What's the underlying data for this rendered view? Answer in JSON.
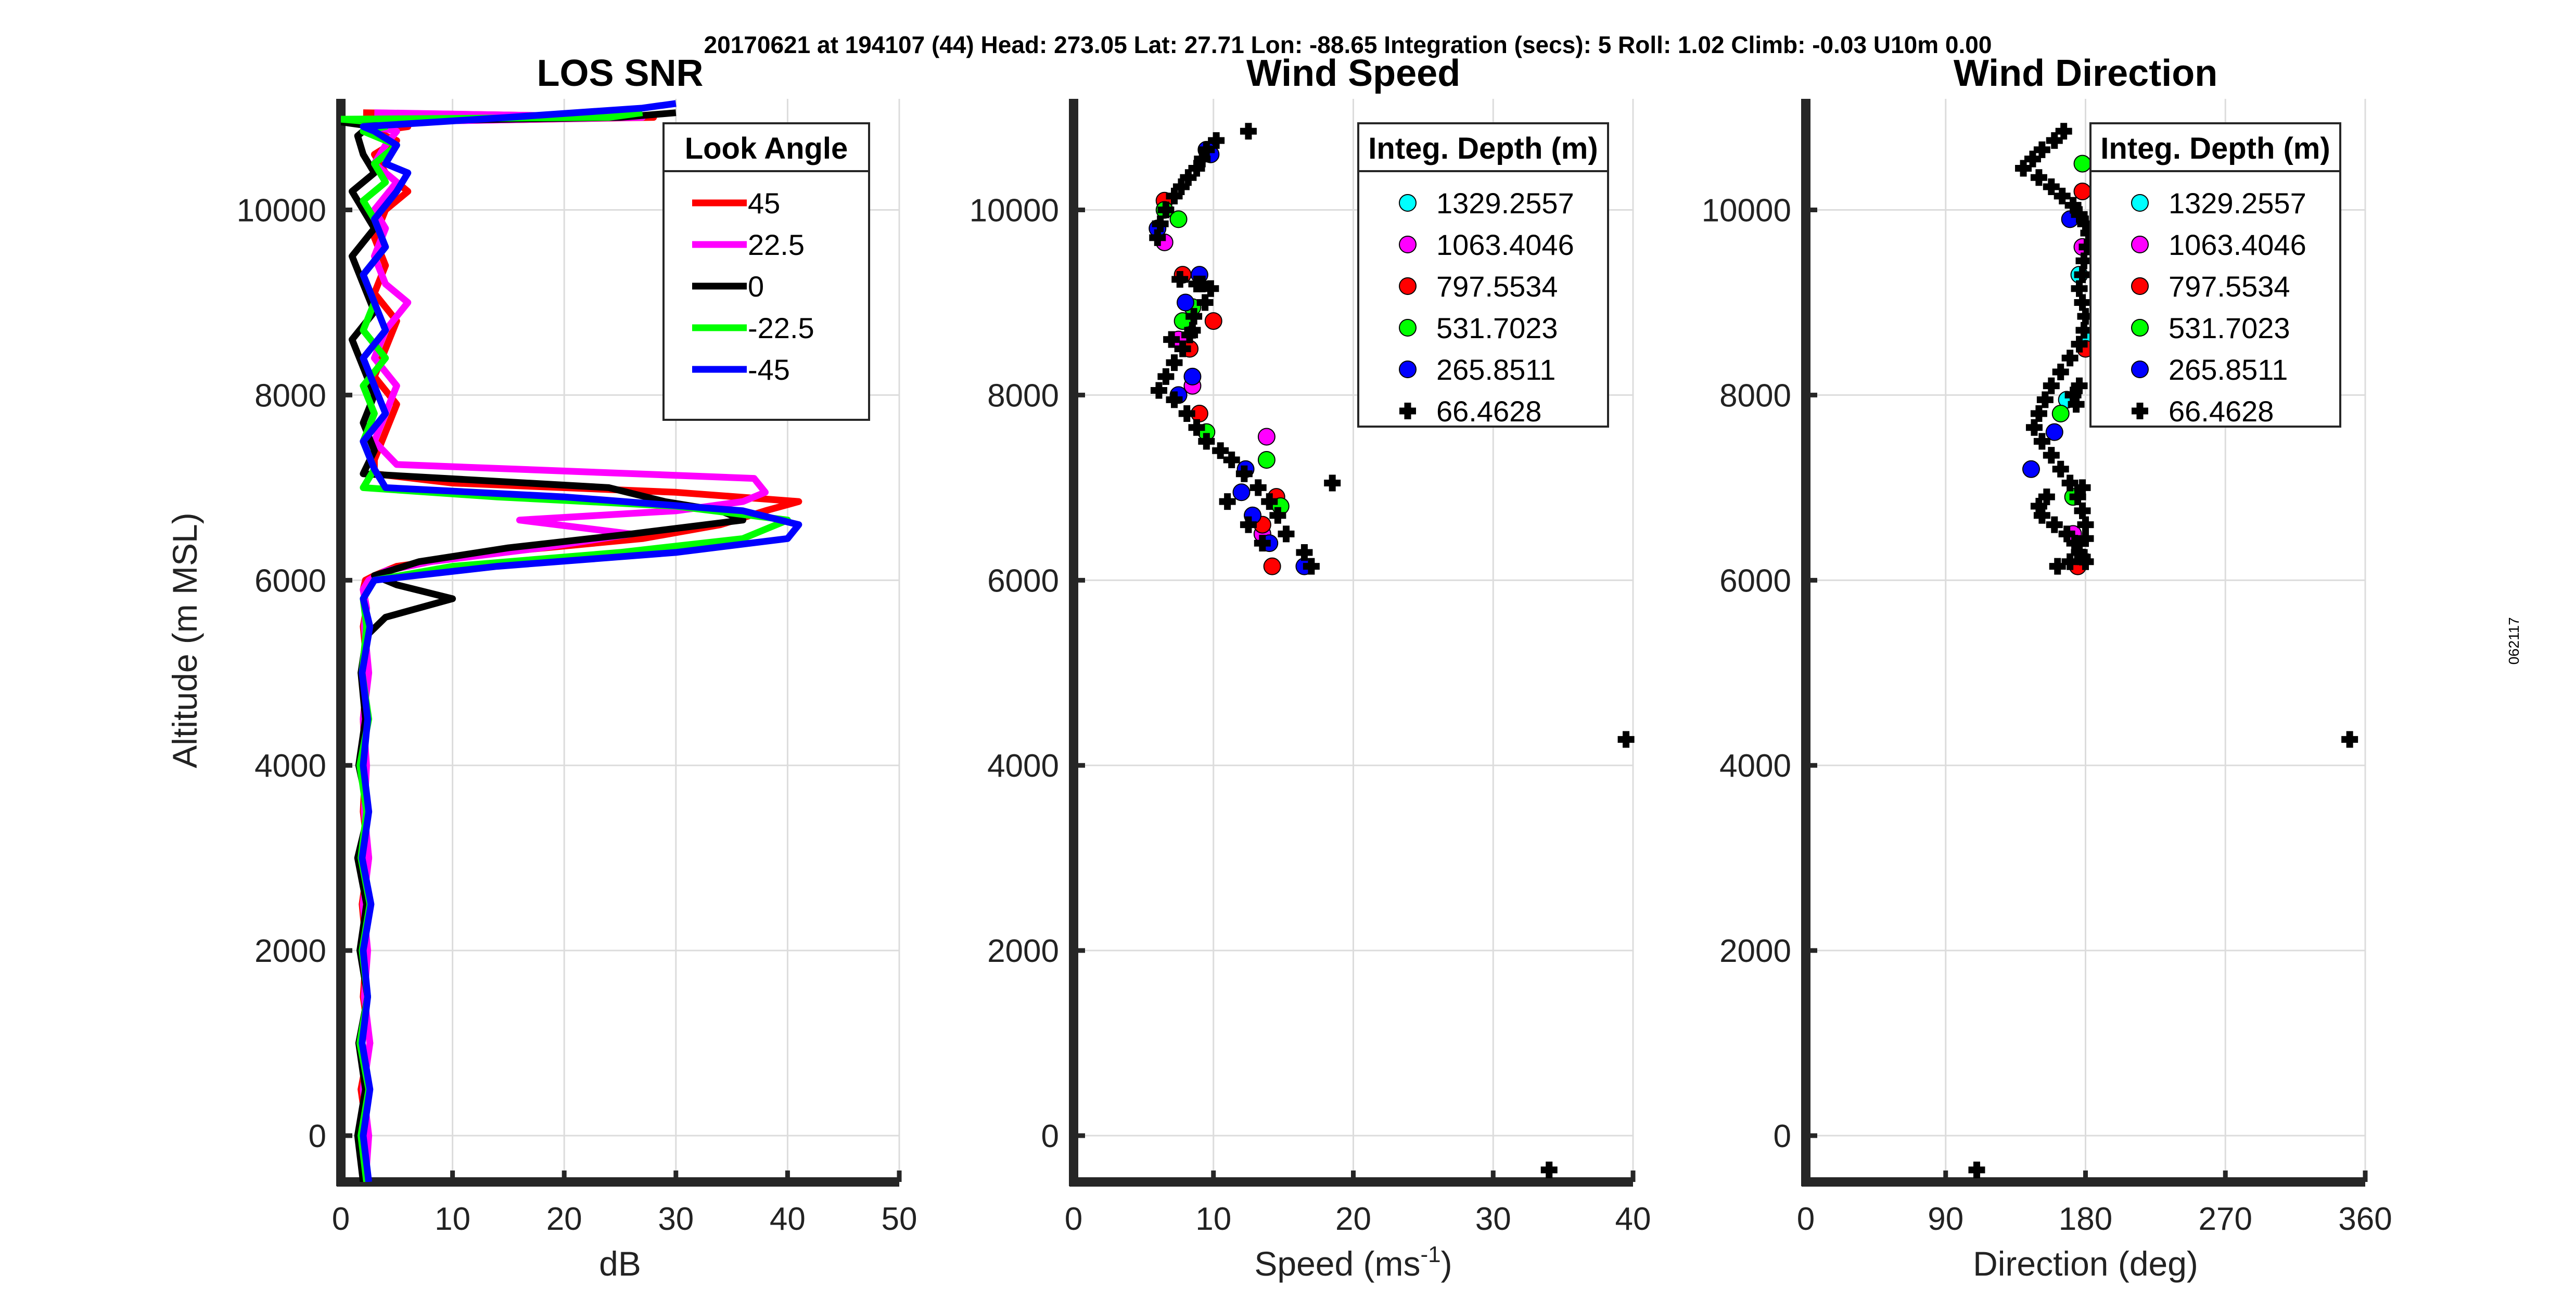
{
  "header": {
    "title": "20170621 at 194107 (44)  Head: 273.05  Lat: 27.71  Lon: -88.65  Integration (secs): 5  Roll: 1.02  Climb: -0.03  U10m 0.00"
  },
  "side_stamp": "062117",
  "colors": {
    "45": "#ff0000",
    "22.5": "#ff00ff",
    "0": "#000000",
    "-22.5": "#00ff00",
    "-45": "#0000ff",
    "1329.2557": "#00ffff",
    "1063.4046": "#ff00ff",
    "797.5534": "#ff0000",
    "531.7023": "#00ff00",
    "265.8511": "#0000ff",
    "66.4628": "#000000"
  },
  "chart_data": [
    {
      "type": "line",
      "title": "LOS SNR",
      "xlabel": "dB",
      "ylabel": "Altitude (m MSL)",
      "xlim": [
        0,
        50
      ],
      "ylim": [
        -500,
        11200
      ],
      "xticks": [
        "0",
        "10",
        "20",
        "30",
        "40",
        "50"
      ],
      "yticks": [
        "0",
        "2000",
        "4000",
        "6000",
        "8000",
        "10000"
      ],
      "grid": true,
      "legend": {
        "title": "Look Angle",
        "placement": "top-right",
        "entries": [
          "45",
          "22.5",
          "0",
          "-22.5",
          "-45"
        ]
      },
      "series": [
        {
          "name": "45",
          "x": [
            2,
            2.4,
            1.8,
            2.6,
            2,
            2.3,
            1.9,
            2.5,
            2,
            2.2,
            2,
            2.4,
            2,
            2.3,
            2,
            2.2,
            3,
            5,
            14,
            27,
            34,
            38,
            41,
            30,
            10,
            3,
            3,
            4,
            5,
            3,
            4,
            5,
            3,
            4,
            3,
            4,
            6,
            4,
            3,
            5,
            3,
            6,
            3,
            28,
            2
          ],
          "y": [
            -500,
            0,
            500,
            1000,
            1500,
            2000,
            2500,
            3000,
            3500,
            4000,
            4500,
            5000,
            5500,
            5700,
            5900,
            6000,
            6050,
            6150,
            6300,
            6450,
            6600,
            6750,
            6850,
            6950,
            7050,
            7150,
            7300,
            7600,
            7900,
            8200,
            8500,
            8800,
            9100,
            9400,
            9700,
            10000,
            10200,
            10400,
            10600,
            10750,
            10850,
            10900,
            10950,
            11000,
            11050
          ]
        },
        {
          "name": "22.5",
          "x": [
            2.2,
            2.5,
            2,
            2.6,
            2.1,
            2.4,
            2,
            2.5,
            2.1,
            2.3,
            2,
            2.5,
            2.1,
            2.3,
            2,
            2.5,
            4,
            8,
            18,
            26,
            16,
            30,
            36,
            38,
            37,
            5,
            3,
            4,
            5,
            3,
            4,
            6,
            4,
            3,
            4,
            3,
            5,
            3,
            4,
            5,
            3,
            4,
            27,
            3
          ],
          "y": [
            -500,
            0,
            500,
            1000,
            1500,
            2000,
            2500,
            3000,
            3500,
            4000,
            4500,
            5000,
            5500,
            5700,
            5900,
            6000,
            6100,
            6200,
            6350,
            6500,
            6650,
            6750,
            6850,
            6950,
            7100,
            7250,
            7500,
            7800,
            8100,
            8400,
            8700,
            9000,
            9200,
            9500,
            9800,
            10000,
            10300,
            10500,
            10700,
            10850,
            10900,
            10950,
            11000,
            11050
          ]
        },
        {
          "name": "0",
          "x": [
            2,
            1.5,
            2.2,
            1.6,
            2.4,
            1.7,
            2.3,
            1.5,
            2.5,
            1.6,
            2.2,
            1.8,
            2.3,
            4,
            10,
            5,
            3,
            7,
            15,
            26,
            36,
            34,
            29,
            24,
            2,
            3,
            2,
            3,
            2,
            1,
            3,
            2,
            1,
            3,
            2,
            1,
            3,
            2,
            1.5,
            2,
            3,
            0,
            25,
            30
          ],
          "y": [
            -500,
            0,
            500,
            1000,
            1500,
            2000,
            2500,
            3000,
            3500,
            4000,
            4500,
            5000,
            5400,
            5600,
            5800,
            5950,
            6050,
            6200,
            6350,
            6500,
            6650,
            6750,
            6850,
            7000,
            7150,
            7400,
            7700,
            8000,
            8300,
            8600,
            8900,
            9200,
            9500,
            9800,
            10000,
            10200,
            10400,
            10600,
            10800,
            10850,
            10900,
            10950,
            11000,
            11050
          ]
        },
        {
          "name": "-22.5",
          "x": [
            2.3,
            1.8,
            2.5,
            1.7,
            2.4,
            1.9,
            2.6,
            1.8,
            2.3,
            1.7,
            2.5,
            1.9,
            2.3,
            2,
            3,
            10,
            25,
            36,
            40,
            30,
            14,
            2,
            3,
            2,
            3,
            2,
            4,
            2,
            3,
            2,
            4,
            3,
            2,
            4,
            3,
            5,
            3,
            2,
            4,
            3,
            0,
            24,
            27
          ],
          "y": [
            -500,
            0,
            500,
            1000,
            1500,
            2000,
            2500,
            3000,
            3500,
            4000,
            4500,
            5000,
            5500,
            5800,
            6000,
            6150,
            6300,
            6450,
            6650,
            6800,
            6900,
            7000,
            7200,
            7500,
            7800,
            8100,
            8400,
            8700,
            9000,
            9300,
            9600,
            9900,
            10100,
            10300,
            10500,
            10700,
            10800,
            10850,
            10900,
            10950,
            10980,
            11000,
            11050
          ]
        },
        {
          "name": "-45",
          "x": [
            2.5,
            2,
            2.6,
            1.9,
            2.4,
            2,
            2.7,
            1.9,
            2.5,
            2,
            2.4,
            1.9,
            2.6,
            2,
            3,
            14,
            30,
            40,
            41,
            36,
            20,
            4,
            3,
            2,
            4,
            3,
            2,
            4,
            3,
            2,
            4,
            3,
            5,
            6,
            4,
            5,
            3,
            2,
            15,
            27,
            30
          ],
          "y": [
            -500,
            0,
            500,
            1000,
            1500,
            2000,
            2500,
            3000,
            3500,
            4000,
            4500,
            5000,
            5500,
            5800,
            6000,
            6150,
            6300,
            6450,
            6600,
            6750,
            6900,
            7000,
            7200,
            7500,
            7800,
            8100,
            8400,
            8700,
            9000,
            9300,
            9600,
            9900,
            10200,
            10400,
            10500,
            10700,
            10850,
            10900,
            11000,
            11100,
            11150
          ]
        }
      ]
    },
    {
      "type": "scatter",
      "title": "Wind Speed",
      "xlabel": "Speed (ms",
      "xlabel_sup": "-1",
      "xlabel_end": ")",
      "xlim": [
        0,
        40
      ],
      "ylim": [
        -500,
        11200
      ],
      "xticks": [
        "0",
        "10",
        "20",
        "30",
        "40"
      ],
      "yticks": [
        "0",
        "2000",
        "4000",
        "6000",
        "8000",
        "10000"
      ],
      "grid": true,
      "legend": {
        "title": "Integ. Depth (m)",
        "placement": "top-right",
        "entries": [
          "1329.2557",
          "1063.4046",
          "797.5534",
          "531.7023",
          "265.8511",
          "66.4628"
        ]
      },
      "series": [
        {
          "name": "1063.4046",
          "marker": "circle",
          "x": [
            13.8,
            6.5,
            7.5,
            8.5,
            13.5
          ],
          "y": [
            7550,
            9650,
            8600,
            8100,
            6500
          ]
        },
        {
          "name": "797.5534",
          "marker": "circle",
          "x": [
            6.5,
            7.8,
            8.3,
            14.5,
            14.2,
            13.5,
            9,
            10
          ],
          "y": [
            10100,
            9300,
            8500,
            6900,
            6150,
            6600,
            7800,
            8800
          ]
        },
        {
          "name": "531.7023",
          "marker": "circle",
          "x": [
            13.8,
            7.5,
            8.5,
            7.8,
            14.8,
            9.5,
            6.5
          ],
          "y": [
            7300,
            9900,
            8950,
            8800,
            6800,
            7600,
            10000
          ]
        },
        {
          "name": "265.8511",
          "marker": "circle",
          "x": [
            6,
            9.5,
            8.5,
            12.3,
            12.8,
            12,
            16.5,
            9,
            7.5,
            8,
            14,
            9.8
          ],
          "y": [
            9800,
            10650,
            8200,
            7200,
            6700,
            6950,
            6150,
            9300,
            8000,
            9000,
            6400,
            10600
          ]
        },
        {
          "name": "66.4628",
          "marker": "plus",
          "x": [
            12.5,
            10.2,
            9.5,
            9.2,
            8.8,
            8.2,
            7.7,
            7.2,
            6.6,
            6.2,
            6.0,
            7.6,
            8.8,
            9.8,
            9.4,
            8.6,
            8.3,
            7.8,
            7.2,
            6.6,
            6.1,
            7.2,
            8.1,
            8.8,
            9.5,
            10.5,
            11.3,
            12.2,
            13.2,
            14.0,
            14.6,
            15.2,
            16.5,
            17.0,
            18.5,
            39.5,
            34.0,
            13.5,
            12.5,
            11.0,
            9.2,
            8.5,
            7.0
          ],
          "y": [
            10850,
            10750,
            10650,
            10550,
            10450,
            10350,
            10250,
            10150,
            10000,
            9850,
            9700,
            9250,
            9200,
            9150,
            9000,
            8850,
            8650,
            8500,
            8350,
            8200,
            8050,
            7950,
            7800,
            7650,
            7500,
            7400,
            7300,
            7150,
            7000,
            6850,
            6700,
            6500,
            6300,
            6150,
            7050,
            4280,
            -370,
            6400,
            6600,
            6850,
            9200,
            8700,
            8600
          ]
        }
      ]
    },
    {
      "type": "scatter",
      "title": "Wind Direction",
      "xlabel": "Direction (deg)",
      "xlim": [
        0,
        360
      ],
      "ylim": [
        -500,
        11200
      ],
      "xticks": [
        "0",
        "90",
        "180",
        "270",
        "360"
      ],
      "yticks": [
        "0",
        "2000",
        "4000",
        "6000",
        "8000",
        "10000"
      ],
      "grid": true,
      "legend": {
        "title": "Integ. Depth (m)",
        "placement": "top-right",
        "entries": [
          "1329.2557",
          "1063.4046",
          "797.5534",
          "531.7023",
          "265.8511",
          "66.4628"
        ]
      },
      "series": [
        {
          "name": "1329.2557",
          "marker": "circle",
          "x": [
            168,
            176,
            182
          ],
          "y": [
            7950,
            9300,
            8600
          ]
        },
        {
          "name": "1063.4046",
          "marker": "circle",
          "x": [
            172,
            178
          ],
          "y": [
            6500,
            9600
          ]
        },
        {
          "name": "797.5534",
          "marker": "circle",
          "x": [
            175,
            180,
            178
          ],
          "y": [
            6150,
            8500,
            10200
          ]
        },
        {
          "name": "531.7023",
          "marker": "circle",
          "x": [
            164,
            172,
            178
          ],
          "y": [
            7800,
            6900,
            10500
          ]
        },
        {
          "name": "265.8511",
          "marker": "circle",
          "x": [
            145,
            160,
            170
          ],
          "y": [
            7200,
            7600,
            9900
          ]
        },
        {
          "name": "66.4628",
          "marker": "plus",
          "x": [
            166,
            160,
            152,
            146,
            140,
            150,
            158,
            165,
            172,
            176,
            180,
            182,
            181,
            179,
            178,
            176,
            178,
            180,
            179,
            176,
            170,
            164,
            158,
            154,
            150,
            147,
            152,
            158,
            164,
            170,
            175,
            178,
            180,
            180,
            176,
            170,
            162,
            155,
            150,
            152,
            160,
            168,
            173,
            176,
            178,
            180,
            178,
            174,
            172,
            176,
            350,
            110
          ],
          "y": [
            10850,
            10750,
            10650,
            10550,
            10450,
            10350,
            10250,
            10150,
            10050,
            9950,
            9850,
            9750,
            9600,
            9450,
            9300,
            9150,
            9000,
            8850,
            8700,
            8550,
            8400,
            8250,
            8100,
            7950,
            7800,
            7650,
            7500,
            7350,
            7200,
            7050,
            6900,
            6750,
            6600,
            6450,
            6300,
            6200,
            6150,
            6900,
            6800,
            6700,
            6600,
            6500,
            6400,
            6300,
            6250,
            6200,
            7000,
            7900,
            8000,
            8100,
            4280,
            -370
          ]
        }
      ]
    }
  ]
}
